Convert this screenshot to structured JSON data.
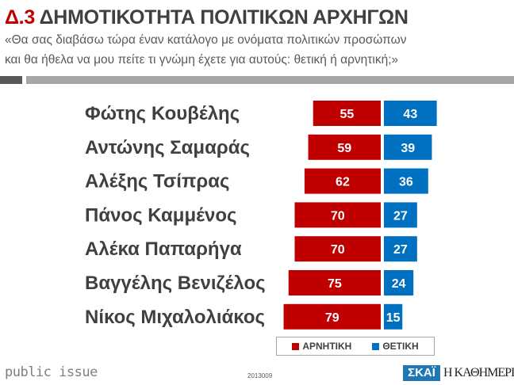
{
  "header": {
    "code": "Δ.3",
    "title": "ΔΗΜΟΤΙΚΟΤΗΤΑ ΠΟΛΙΤΙΚΩΝ ΑΡΧΗΓΩΝ",
    "subtitle_line1": "«Θα σας διαβάσω τώρα έναν κατάλογο με ονόματα πολιτικών προσώπων",
    "subtitle_line2": "και θα ήθελα να μου πείτε τι γνώμη έχετε για αυτούς: θετική ή αρνητική;»"
  },
  "colors": {
    "negative": "#c00000",
    "positive": "#0070c0"
  },
  "chart_data": {
    "type": "bar",
    "orientation": "horizontal-diverging",
    "categories": [
      "Φώτης Κουβέλης",
      "Αντώνης Σαμαράς",
      "Αλέξης Τσίπρας",
      "Πάνος Καμμένος",
      "Αλέκα Παπαρήγα",
      "Βαγγέλης Βενιζέλος",
      "Νίκος Μιχαλολιάκος"
    ],
    "series": [
      {
        "name": "ΑΡΝΗΤΙΚΗ",
        "values": [
          55,
          59,
          62,
          70,
          70,
          75,
          79
        ]
      },
      {
        "name": "ΘΕΤΙΚΗ",
        "values": [
          43,
          39,
          36,
          27,
          27,
          24,
          15
        ]
      }
    ],
    "legend": "bottom-right"
  },
  "footer": {
    "brand": "public issue",
    "code": "2013009",
    "logo1": "ΣΚΑΪ",
    "logo2": "Η ΚΑΘΗΜΕΡΙΝΗ"
  }
}
